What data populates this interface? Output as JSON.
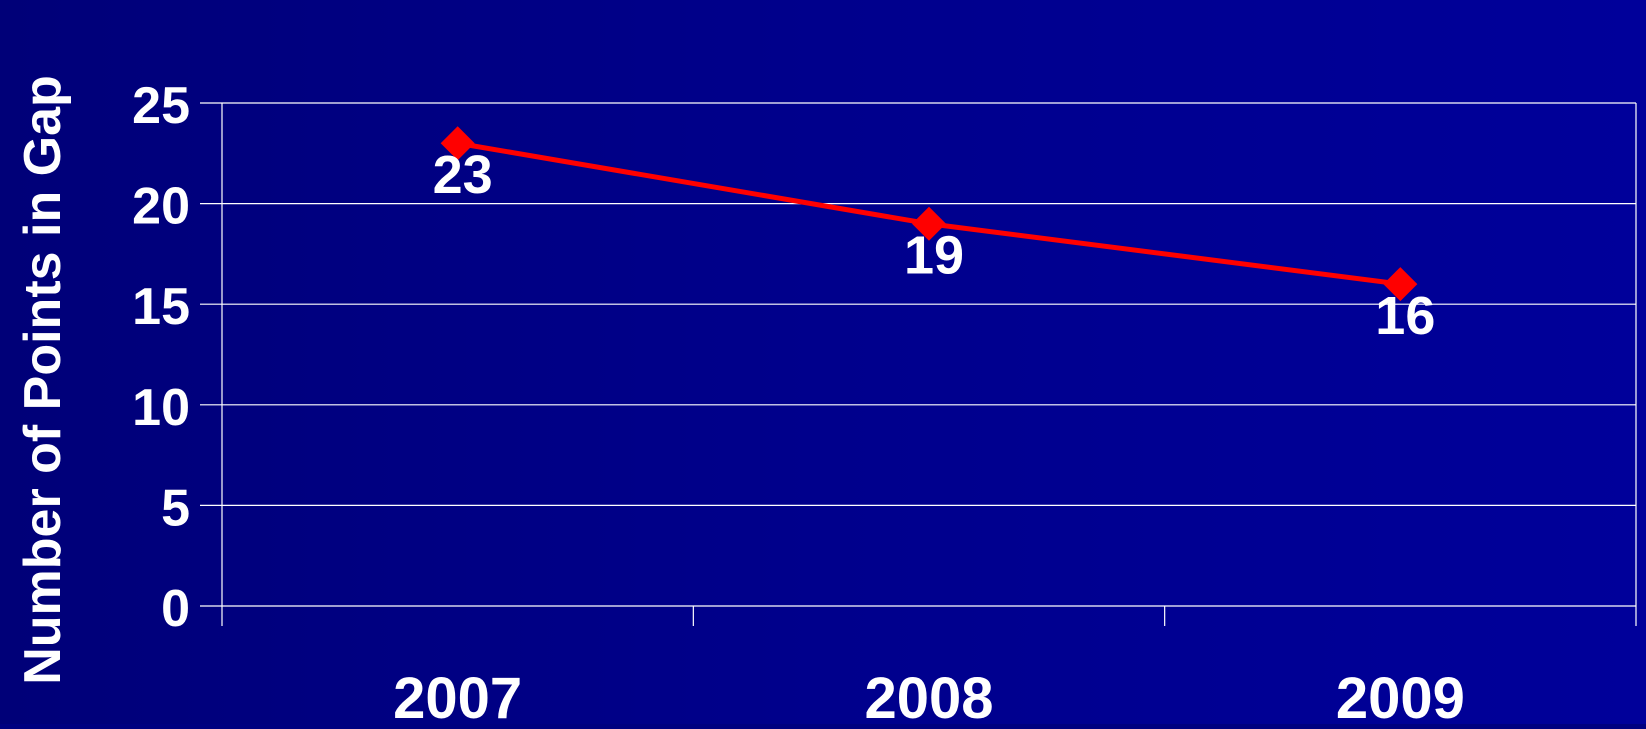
{
  "chart_data": {
    "type": "line",
    "title": "",
    "xlabel": "",
    "ylabel": "Number of Points in Gap",
    "categories": [
      "2007",
      "2008",
      "2009"
    ],
    "series": [
      {
        "values": [
          23,
          19,
          16
        ],
        "color": "#ff0000",
        "marker": "diamond"
      }
    ],
    "data_labels": [
      "23",
      "19",
      "16"
    ],
    "ylim": [
      0,
      25
    ],
    "yticks": [
      0,
      5,
      10,
      15,
      20,
      25
    ],
    "ytick_labels": [
      "0",
      "5",
      "10",
      "15",
      "20",
      "25"
    ],
    "grid": true,
    "legend": "none"
  },
  "colors": {
    "text": "#ffffff",
    "gridline": "#ffffff",
    "line": "#ff0000"
  }
}
